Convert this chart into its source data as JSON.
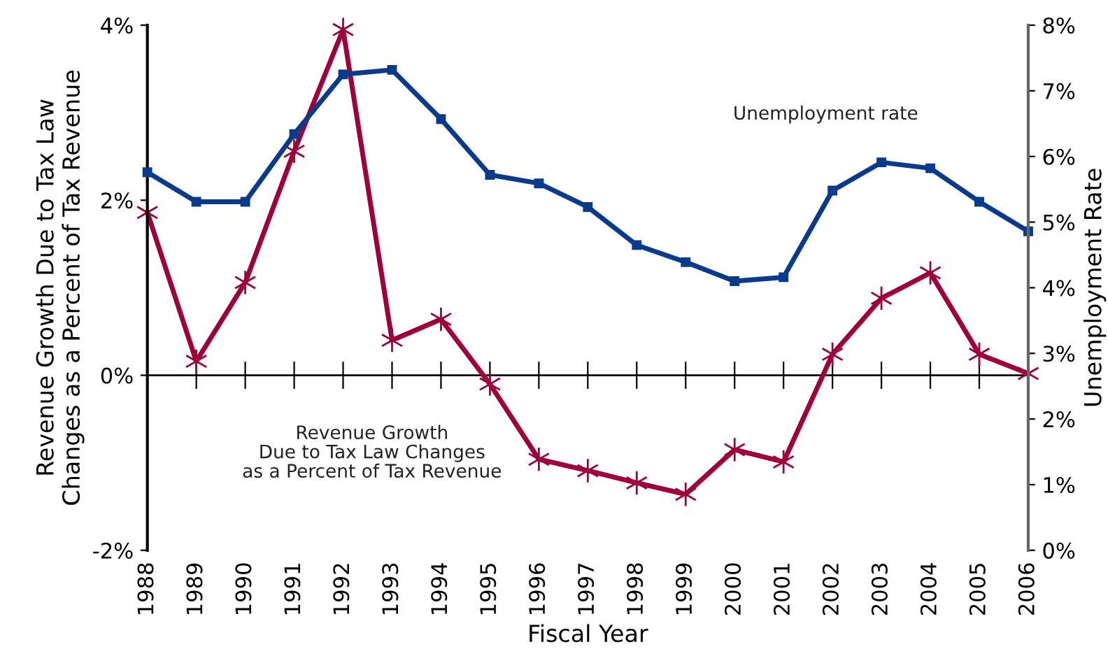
{
  "chart_data": {
    "type": "line",
    "xlabel": "Fiscal Year",
    "ylabel": "Revenue Growth Due to Tax Law\nChanges as a Percent of Tax Revenue",
    "y2label": "Unemployment Rate",
    "x": [
      1988,
      1989,
      1990,
      1991,
      1992,
      1993,
      1994,
      1995,
      1996,
      1997,
      1998,
      1999,
      2000,
      2001,
      2002,
      2003,
      2004,
      2005,
      2006
    ],
    "series": [
      {
        "name": "Unemployment rate",
        "color": "#0a3a8c",
        "axis": "y2",
        "marker": "square",
        "values": [
          5.76,
          5.31,
          5.31,
          6.34,
          7.25,
          7.32,
          6.57,
          5.72,
          5.59,
          5.23,
          4.65,
          4.39,
          4.1,
          4.16,
          5.48,
          5.91,
          5.82,
          5.31,
          4.86
        ]
      },
      {
        "name": "Revenue Growth\nDue to Tax Law Changes\nas a Percent of Tax Revenue",
        "color": "#a0003a",
        "marker": "cross",
        "values": [
          1.86,
          0.16,
          1.06,
          2.56,
          3.95,
          0.4,
          0.64,
          -0.1,
          -0.96,
          -1.09,
          -1.23,
          -1.36,
          -0.85,
          -0.99,
          0.24,
          0.88,
          1.17,
          0.24,
          0.02
        ]
      }
    ],
    "xlim": [
      1988,
      2006
    ],
    "xticks": [
      1988,
      1989,
      1990,
      1991,
      1992,
      1993,
      1994,
      1995,
      1996,
      1997,
      1998,
      1999,
      2000,
      2001,
      2002,
      2003,
      2004,
      2005,
      2006
    ],
    "ylim": [
      -2,
      4
    ],
    "yticks": [
      {
        "value": -2,
        "label": "-2%"
      },
      {
        "value": 0,
        "label": "0%"
      },
      {
        "value": 2,
        "label": "2%"
      },
      {
        "value": 4,
        "label": "4%"
      }
    ],
    "y2lim": [
      0,
      8
    ],
    "y2ticks": [
      {
        "value": 0,
        "label": "0%"
      },
      {
        "value": 1,
        "label": "1%"
      },
      {
        "value": 2,
        "label": "2%"
      },
      {
        "value": 3,
        "label": "3%"
      },
      {
        "value": 4,
        "label": "4%"
      },
      {
        "value": 5,
        "label": "5%"
      },
      {
        "value": 6,
        "label": "6%"
      },
      {
        "value": 7,
        "label": "7%"
      },
      {
        "value": 8,
        "label": "8%"
      }
    ],
    "ref_lines": [
      {
        "axis": "y",
        "value": 0,
        "color": "#000000",
        "line_style": "solid"
      }
    ],
    "grid": false,
    "legend": false,
    "line_style": "solid"
  }
}
